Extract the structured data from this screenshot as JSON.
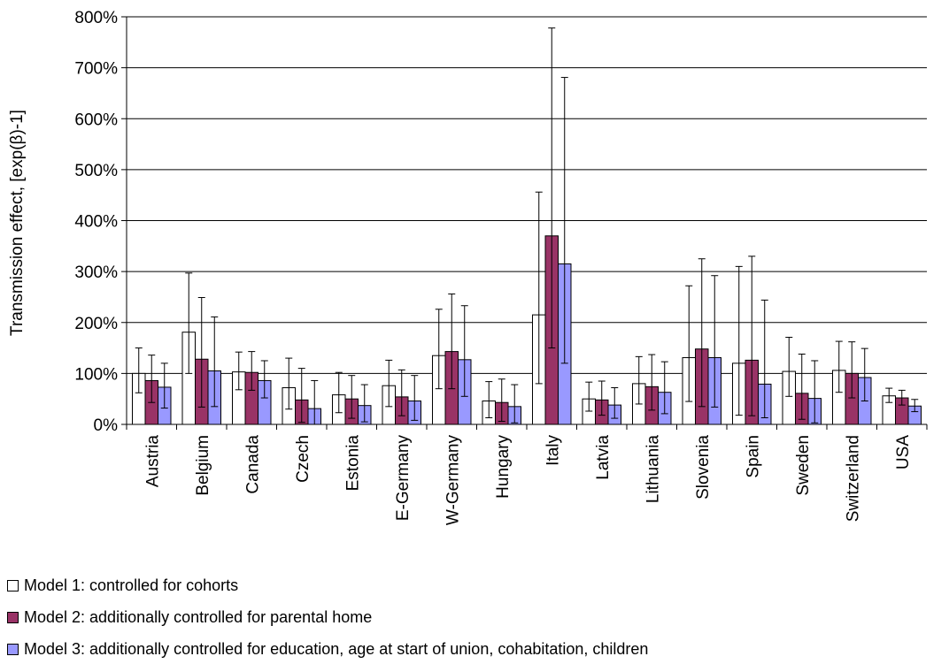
{
  "chart_data": {
    "type": "bar",
    "ylabel": "Transmission effect, [exp(β)-1]",
    "xlabel": "",
    "ylim": [
      0,
      800
    ],
    "yticks": [
      0,
      100,
      200,
      300,
      400,
      500,
      600,
      700,
      800
    ],
    "ytick_labels": [
      "0%",
      "100%",
      "200%",
      "300%",
      "400%",
      "500%",
      "600%",
      "700%",
      "800%"
    ],
    "grid": true,
    "categories": [
      "Austria",
      "Belgium",
      "Canada",
      "Czech",
      "Estonia",
      "E-Germany",
      "W-Germany",
      "Hungary",
      "Italy",
      "Latvia",
      "Lithuania",
      "Slovenia",
      "Spain",
      "Sweden",
      "Switzerland",
      "USA"
    ],
    "series": [
      {
        "name": "Model 1: controlled for cohorts",
        "color": "#ffffff",
        "values": [
          100,
          181,
          103,
          72,
          58,
          76,
          135,
          46,
          215,
          50,
          80,
          131,
          120,
          104,
          106,
          56
        ],
        "error_low": [
          62,
          100,
          68,
          30,
          23,
          35,
          70,
          13,
          80,
          26,
          40,
          45,
          18,
          55,
          63,
          43
        ],
        "error_high": [
          150,
          297,
          142,
          130,
          102,
          126,
          226,
          84,
          456,
          83,
          133,
          272,
          310,
          171,
          163,
          71
        ]
      },
      {
        "name": "Model 2: additionally controlled for parental home",
        "color": "#993366",
        "values": [
          86,
          128,
          102,
          48,
          50,
          54,
          143,
          43,
          370,
          48,
          74,
          148,
          126,
          61,
          100,
          52
        ],
        "error_low": [
          43,
          34,
          67,
          4,
          12,
          17,
          70,
          6,
          150,
          18,
          28,
          35,
          17,
          10,
          52,
          38
        ],
        "error_high": [
          136,
          249,
          143,
          110,
          96,
          107,
          256,
          89,
          778,
          85,
          137,
          325,
          330,
          138,
          162,
          67
        ]
      },
      {
        "name": "Model 3: additionally controlled for education, age at start of union, cohabitation, children",
        "color": "#9999ff",
        "values": [
          73,
          105,
          86,
          31,
          37,
          46,
          127,
          35,
          315,
          38,
          63,
          131,
          79,
          51,
          92,
          36
        ],
        "error_low": [
          32,
          35,
          52,
          0,
          5,
          8,
          55,
          3,
          120,
          12,
          21,
          34,
          13,
          3,
          46,
          25
        ],
        "error_high": [
          120,
          211,
          125,
          86,
          78,
          96,
          233,
          78,
          681,
          72,
          123,
          292,
          244,
          125,
          149,
          49
        ]
      }
    ]
  }
}
